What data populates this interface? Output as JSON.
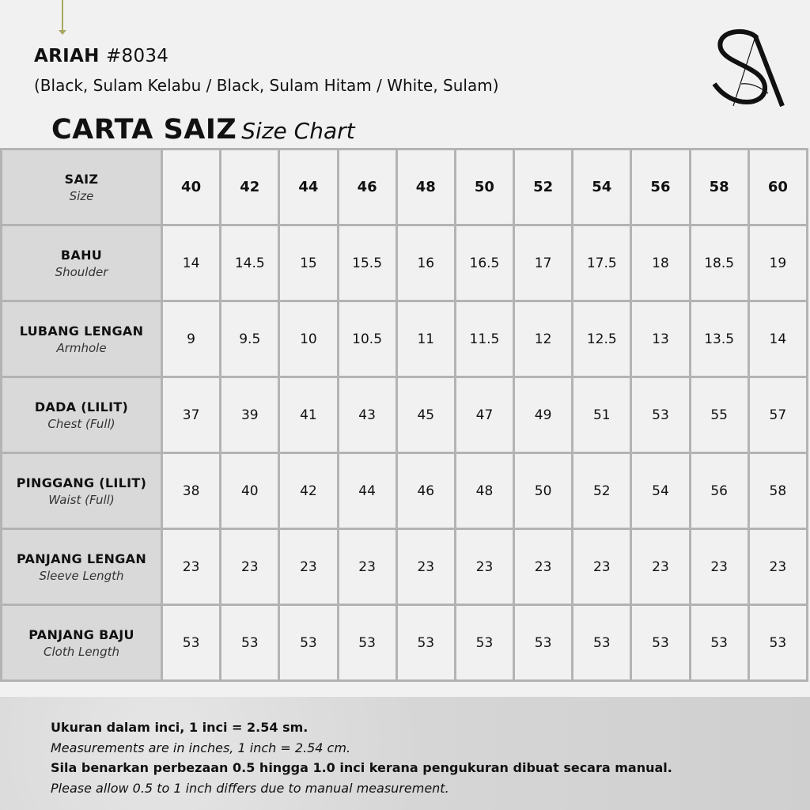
{
  "product": {
    "name": "ARIAH",
    "code": "#8034",
    "variants": "(Black, Sulam Kelabu / Black, Sulam Hitam / White, Sulam)"
  },
  "chart_title": {
    "main": "CARTA SAIZ",
    "sub": "Size Chart"
  },
  "logo": {
    "text": "SA"
  },
  "table": {
    "header": {
      "label": "SAIZ",
      "sublabel": "Size",
      "sizes": [
        "40",
        "42",
        "44",
        "46",
        "48",
        "50",
        "52",
        "54",
        "56",
        "58",
        "60"
      ]
    },
    "rows": [
      {
        "label": "BAHU",
        "sublabel": "Shoulder",
        "values": [
          "14",
          "14.5",
          "15",
          "15.5",
          "16",
          "16.5",
          "17",
          "17.5",
          "18",
          "18.5",
          "19"
        ]
      },
      {
        "label": "LUBANG LENGAN",
        "sublabel": "Armhole",
        "values": [
          "9",
          "9.5",
          "10",
          "10.5",
          "11",
          "11.5",
          "12",
          "12.5",
          "13",
          "13.5",
          "14"
        ]
      },
      {
        "label": "DADA (LILIT)",
        "sublabel": "Chest (Full)",
        "values": [
          "37",
          "39",
          "41",
          "43",
          "45",
          "47",
          "49",
          "51",
          "53",
          "55",
          "57"
        ]
      },
      {
        "label": "PINGGANG (LILIT)",
        "sublabel": "Waist (Full)",
        "values": [
          "38",
          "40",
          "42",
          "44",
          "46",
          "48",
          "50",
          "52",
          "54",
          "56",
          "58"
        ]
      },
      {
        "label": "PANJANG LENGAN",
        "sublabel": "Sleeve Length",
        "values": [
          "23",
          "23",
          "23",
          "23",
          "23",
          "23",
          "23",
          "23",
          "23",
          "23",
          "23"
        ]
      },
      {
        "label": "PANJANG BAJU",
        "sublabel": "Cloth Length",
        "values": [
          "53",
          "53",
          "53",
          "53",
          "53",
          "53",
          "53",
          "53",
          "53",
          "53",
          "53"
        ]
      }
    ]
  },
  "notes": [
    "Ukuran dalam inci, 1 inci = 2.54 sm.",
    "Measurements are in inches, 1 inch = 2.54 cm.",
    "Sila benarkan perbezaan 0.5 hingga 1.0 inci kerana pengukuran dibuat secara manual.",
    "Please allow 0.5 to 1 inch differs due to manual measurement."
  ],
  "colors": {
    "accent_arrow": "#a7a860",
    "label_cell": "#d9d9d9",
    "grid": "#b3b3b3",
    "background": "#f1f1f1"
  }
}
